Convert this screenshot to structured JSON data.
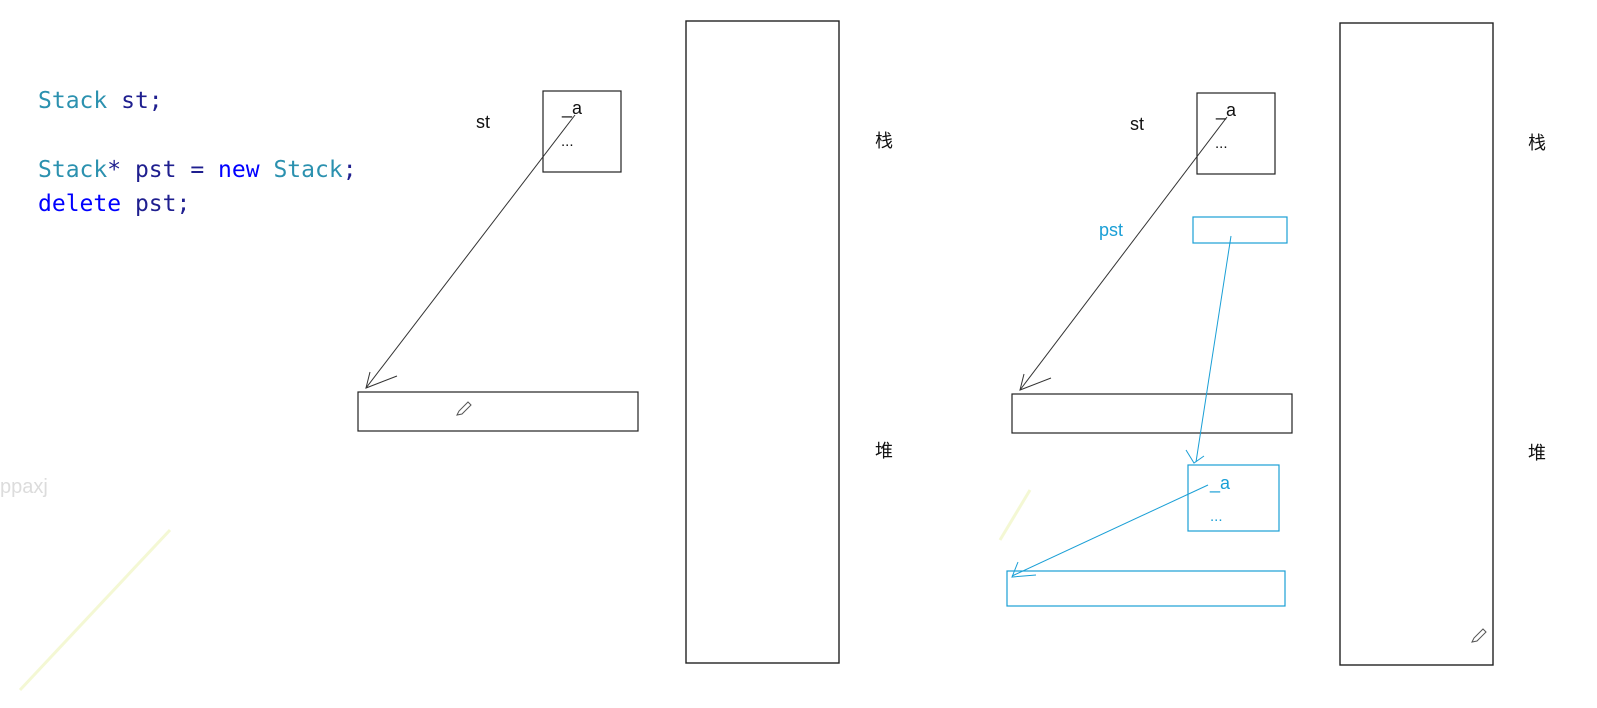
{
  "code": {
    "line1": {
      "type": "Stack",
      "rest": " st;"
    },
    "line2": {
      "type": "Stack",
      "mid": "* pst = ",
      "kw": "new",
      "sp": " ",
      "type2": "Stack",
      "end": ";"
    },
    "line3": {
      "kw": "delete",
      "rest": " pst;"
    }
  },
  "left_diagram": {
    "var_label": "st",
    "member_a": "_a",
    "member_more": "...",
    "stack_label": "栈",
    "heap_label": "堆"
  },
  "right_diagram": {
    "var_label": "st",
    "member_a": "_a",
    "member_more": "...",
    "pointer_label": "pst",
    "heap_obj_a": "_a",
    "heap_obj_more": "...",
    "stack_label": "栈",
    "heap_label": "堆"
  },
  "watermark": {
    "text": "ppaxj"
  },
  "colors": {
    "ink": "#222222",
    "blue": "#1a9fd6",
    "type": "#2b91af",
    "keyword": "#0000ff"
  }
}
